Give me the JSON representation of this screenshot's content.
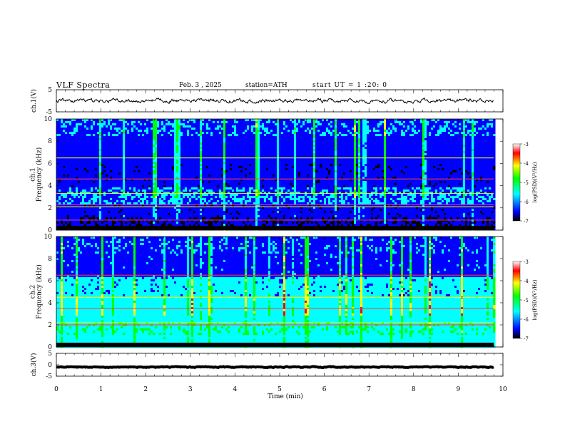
{
  "header": {
    "title": "VLF  Spectra",
    "date": "Feb. 3 , 2025",
    "station": "station=ATH",
    "start": "start UT =  1 :20: 0"
  },
  "chart_data": [
    {
      "type": "line",
      "name": "ch1-waveform",
      "ylabel": "ch.1(V)",
      "ylim": [
        -5,
        5
      ],
      "yticks": [
        "5",
        "-5"
      ],
      "xlim": [
        0,
        10
      ],
      "level_approx": 0
    },
    {
      "type": "heatmap",
      "name": "ch1-spectrogram",
      "ylabel": "ch.1\nFrequency  (kHz)",
      "ylim": [
        0,
        10
      ],
      "yticks": [
        "10",
        "8",
        "6",
        "4",
        "2",
        "0"
      ],
      "xlim": [
        0,
        9.8
      ],
      "strong_bands_khz": [
        0.9,
        2.1,
        2.3,
        3.3,
        4.6,
        6.5
      ],
      "colorbar": {
        "label": "log(PSD)(V²/Hz)",
        "range": [
          -7,
          -3
        ],
        "ticks": [
          "-3",
          "-4",
          "-5",
          "-6",
          "-7"
        ]
      }
    },
    {
      "type": "heatmap",
      "name": "ch2-spectrogram",
      "ylabel": "ch.2\nFrequency  (kHz)",
      "ylim": [
        0,
        10
      ],
      "yticks": [
        "10",
        "8",
        "6",
        "4",
        "2",
        "0"
      ],
      "xlim": [
        0,
        9.8
      ],
      "strong_bands_khz": [
        2.0,
        2.2,
        3.5,
        4.5,
        6.5
      ],
      "colorbar": {
        "label": "log(PSD)(V²/Hz)",
        "range": [
          -7,
          -3
        ],
        "ticks": [
          "-3",
          "-4",
          "-5",
          "-6",
          "-7"
        ]
      }
    },
    {
      "type": "line",
      "name": "ch3-waveform",
      "ylabel": "ch.3(V)",
      "ylim": [
        -5,
        5
      ],
      "yticks": [
        "5",
        "0",
        "-5"
      ],
      "xlim": [
        0,
        10
      ],
      "level_approx": -1
    }
  ],
  "xaxis": {
    "label": "Time  (min)",
    "ticks": [
      "0",
      "1",
      "2",
      "3",
      "4",
      "5",
      "6",
      "7",
      "8",
      "9",
      "10"
    ]
  },
  "colors": {
    "colormap": [
      "#000000",
      "#0000ff",
      "#00ffff",
      "#00ff00",
      "#ffff00",
      "#ff0000",
      "#ffffff"
    ]
  }
}
